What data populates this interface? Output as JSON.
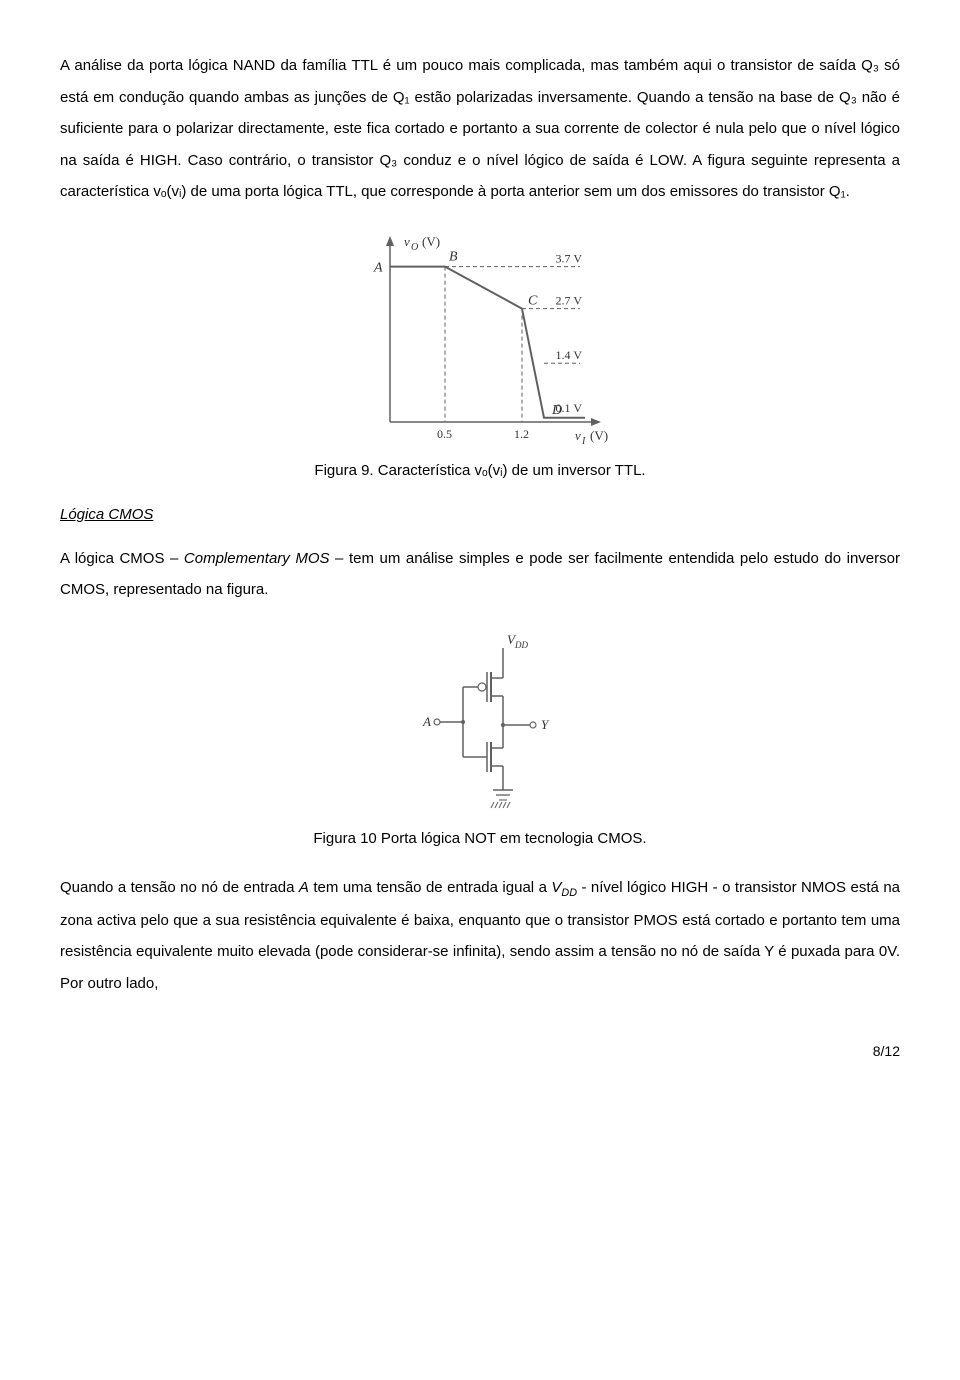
{
  "para1": "A análise da porta lógica NAND da família TTL é um pouco mais complicada, mas também aqui o transistor de saída Q₃ só está em condução quando ambas as junções de Q₁ estão polarizadas inversamente. Quando a tensão na base de Q₃ não é suficiente para o polarizar directamente, este fica cortado e portanto a sua corrente de colector é nula pelo que o nível lógico na saída é HIGH. Caso contrário, o transistor Q₃ conduz e o nível lógico de saída é LOW. A figura seguinte representa a característica vₒ(vᵢ) de uma porta lógica TTL, que corresponde à porta anterior sem um dos emissores do transistor Q₁.",
  "caption1": "Figura 9. Característica vₒ(vᵢ) de um inversor TTL.",
  "section_cmos": "Lógica CMOS",
  "para2_a": "A lógica CMOS – ",
  "para2_b": "Complementary MOS",
  "para2_c": " – tem um análise simples e pode ser facilmente entendida pelo estudo do inversor CMOS, representado na figura.",
  "caption2": "Figura 10 Porta lógica NOT em tecnologia CMOS.",
  "para3_a": "Quando a tensão no nó de entrada ",
  "para3_b": "A",
  "para3_c": " tem uma tensão de entrada igual a ",
  "para3_d": "V",
  "para3_e": "DD",
  "para3_f": " - nível lógico HIGH - o transistor NMOS está na zona activa pelo que a sua resistência equivalente é baixa, enquanto que o transistor PMOS está cortado e portanto tem uma resistência equivalente muito elevada (pode considerar-se infinita), sendo assim a tensão no nó de saída Y é puxada para 0V. Por outro lado,",
  "pagenum": "8/12",
  "fig1": {
    "yaxis_label": "vO (V)",
    "xaxis_label": "vI (V)",
    "points": {
      "A": {
        "label": "A",
        "x": 0,
        "y": 3.7
      },
      "B": {
        "label": "B",
        "x": 0.5,
        "y": 3.7
      },
      "C": {
        "label": "C",
        "x": 1.2,
        "y": 2.7
      },
      "D": {
        "label": "D",
        "x": 1.4,
        "y": 0.1
      }
    },
    "xticks": [
      "0.5",
      "1.2"
    ],
    "ylabels": [
      "3.7 V",
      "2.7 V",
      "1.4 V",
      "0.1 V"
    ],
    "axis_color": "#606060",
    "line_color": "#606060",
    "dash_color": "#606060",
    "font": "italic 13px serif"
  },
  "fig2": {
    "vdd_label": "VDD",
    "in_label": "A",
    "out_label": "Y",
    "line_color": "#606060"
  }
}
